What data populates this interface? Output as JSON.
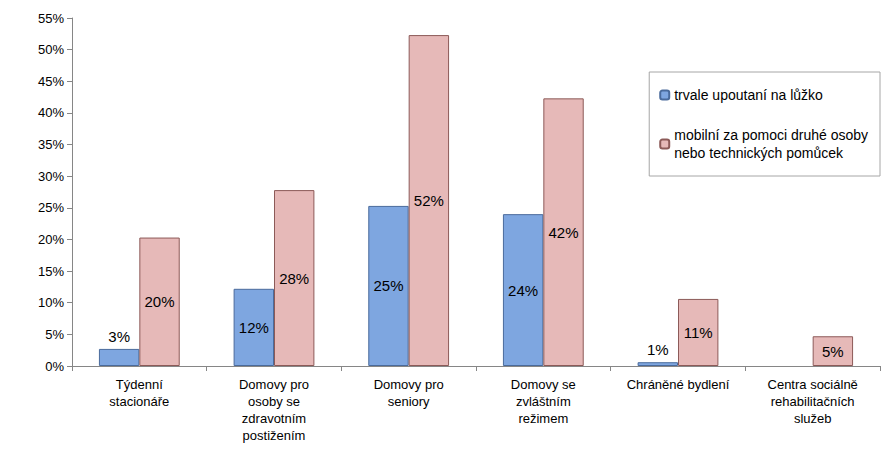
{
  "chart_data": {
    "type": "bar",
    "categories": [
      "Týdenní\nstacionáře",
      "Domovy pro\nosoby se\nzdravotním\npostižením",
      "Domovy pro\nseniory",
      "Domovy se\nzvláštním\nrežimem",
      "Chráněné bydlení",
      "Centra sociálně\nrehabilitačních\nslužeb"
    ],
    "series": [
      {
        "name": "trvale upoutaní na lůžko",
        "color": "#7ea6e0",
        "values": [
          2.7,
          12.2,
          25.3,
          24.0,
          0.6,
          null
        ],
        "value_labels": [
          "3%",
          "12%",
          "25%",
          "24%",
          "1%",
          null
        ]
      },
      {
        "name": "mobilní za pomoci druhé osoby\nnebo technických pomůcek",
        "color": "#e6b9b8",
        "values": [
          20.3,
          27.8,
          52.3,
          42.3,
          10.6,
          4.7
        ],
        "value_labels": [
          "20%",
          "28%",
          "52%",
          "42%",
          "11%",
          "5%"
        ]
      }
    ],
    "ylim": [
      0,
      55
    ],
    "yticks": [
      {
        "value": 0,
        "label": "0%"
      },
      {
        "value": 5,
        "label": "5%"
      },
      {
        "value": 10,
        "label": "10%"
      },
      {
        "value": 15,
        "label": "15%"
      },
      {
        "value": 20,
        "label": "20%"
      },
      {
        "value": 25,
        "label": "25%"
      },
      {
        "value": 30,
        "label": "30%"
      },
      {
        "value": 35,
        "label": "35%"
      },
      {
        "value": 40,
        "label": "40%"
      },
      {
        "value": 45,
        "label": "45%"
      },
      {
        "value": 50,
        "label": "50%"
      },
      {
        "value": 55,
        "label": "55%"
      }
    ],
    "grid": false,
    "data_labels": true,
    "legend": "top-right"
  }
}
